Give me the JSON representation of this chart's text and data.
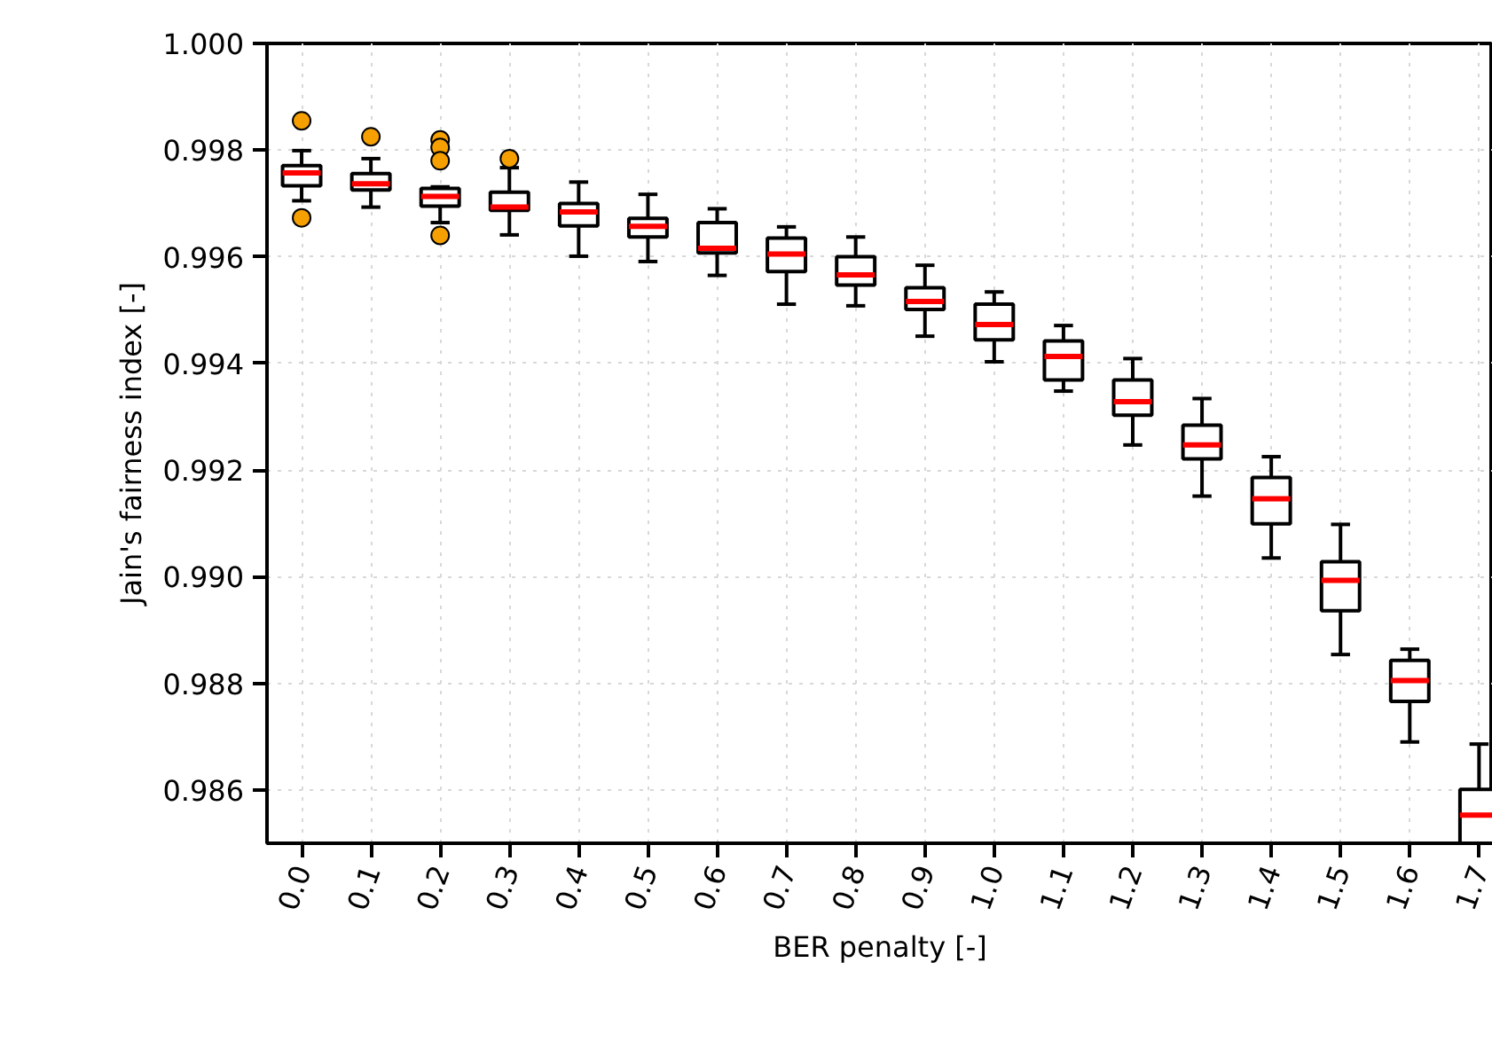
{
  "chart_data": {
    "type": "box",
    "xlabel": "BER penalty [-]",
    "ylabel": "Jain's fairness index [-]",
    "categories": [
      "0.0",
      "0.1",
      "0.2",
      "0.3",
      "0.4",
      "0.5",
      "0.6",
      "0.7",
      "0.8",
      "0.9",
      "1.0",
      "1.1",
      "1.2",
      "1.3",
      "1.4",
      "1.5",
      "1.6",
      "1.7"
    ],
    "boxes": [
      {
        "low": 0.99705,
        "q1": 0.99733,
        "median": 0.99757,
        "q3": 0.99771,
        "high": 0.99799,
        "outliers": [
          0.99855,
          0.99673
        ]
      },
      {
        "low": 0.99693,
        "q1": 0.99725,
        "median": 0.99737,
        "q3": 0.99756,
        "high": 0.99784,
        "outliers": [
          0.99825
        ]
      },
      {
        "low": 0.99664,
        "q1": 0.99695,
        "median": 0.99713,
        "q3": 0.99728,
        "high": 0.99731,
        "outliers": [
          0.99819,
          0.99805,
          0.9978,
          0.9964
        ]
      },
      {
        "low": 0.99641,
        "q1": 0.99687,
        "median": 0.99693,
        "q3": 0.99721,
        "high": 0.99767,
        "outliers": [
          0.99784
        ]
      },
      {
        "low": 0.99601,
        "q1": 0.99658,
        "median": 0.99684,
        "q3": 0.997,
        "high": 0.9974
      },
      {
        "low": 0.99591,
        "q1": 0.99637,
        "median": 0.99657,
        "q3": 0.99672,
        "high": 0.99717
      },
      {
        "low": 0.99565,
        "q1": 0.99607,
        "median": 0.99616,
        "q3": 0.99664,
        "high": 0.9969
      },
      {
        "low": 0.99511,
        "q1": 0.99572,
        "median": 0.99605,
        "q3": 0.99635,
        "high": 0.99656
      },
      {
        "low": 0.99508,
        "q1": 0.99547,
        "median": 0.99566,
        "q3": 0.996,
        "high": 0.99637
      },
      {
        "low": 0.99451,
        "q1": 0.99501,
        "median": 0.99516,
        "q3": 0.99542,
        "high": 0.99584
      },
      {
        "low": 0.99403,
        "q1": 0.99444,
        "median": 0.99473,
        "q3": 0.99511,
        "high": 0.99534
      },
      {
        "low": 0.99348,
        "q1": 0.99369,
        "median": 0.99413,
        "q3": 0.99442,
        "high": 0.99471
      },
      {
        "low": 0.99247,
        "q1": 0.99303,
        "median": 0.99328,
        "q3": 0.99369,
        "high": 0.99409
      },
      {
        "low": 0.99151,
        "q1": 0.99221,
        "median": 0.99247,
        "q3": 0.99284,
        "high": 0.99334
      },
      {
        "low": 0.99035,
        "q1": 0.99099,
        "median": 0.99146,
        "q3": 0.99186,
        "high": 0.99225
      },
      {
        "low": 0.98854,
        "q1": 0.98936,
        "median": 0.98993,
        "q3": 0.99028,
        "high": 0.99098
      },
      {
        "low": 0.9869,
        "q1": 0.98766,
        "median": 0.98805,
        "q3": 0.98843,
        "high": 0.98864
      },
      {
        "low": null,
        "q1": 0.985,
        "median": 0.98553,
        "q3": 0.98601,
        "high": 0.98686
      }
    ],
    "ylim": [
      0.985,
      1.0
    ],
    "yticks": [
      0.986,
      0.988,
      {
        "value": 0.99,
        "label": "0.990"
      },
      0.992,
      0.994,
      0.996,
      0.998,
      {
        "value": 1.0,
        "label": "1.000"
      }
    ],
    "grid": true
  }
}
